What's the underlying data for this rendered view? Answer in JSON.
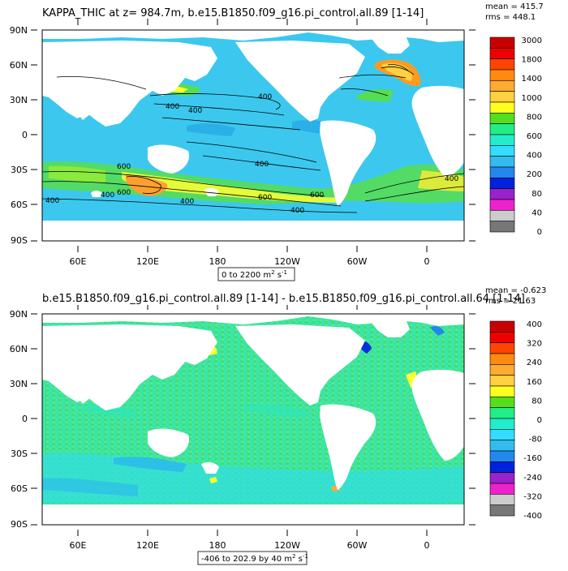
{
  "panels": [
    {
      "title": "KAPPA_THIC at z= 984.7m, b.e15.B1850.f09_g16.pi_control.all.89 [1-14]",
      "stats": [
        "mean = 415.7",
        "rms = 448.1"
      ],
      "range_label": "0 to 2200 m",
      "range_unit_sup": "2",
      "range_unit_tail": " s",
      "range_unit_sup2": "-1",
      "lat_labels": [
        "90N",
        "60N",
        "30N",
        "0",
        "30S",
        "60S",
        "90S"
      ],
      "lon_labels": [
        "60E",
        "120E",
        "180",
        "120W",
        "60W",
        "0"
      ],
      "contour_labels": [
        "400",
        "400",
        "400",
        "600",
        "400",
        "400",
        "600",
        "600",
        "400",
        "400",
        "600",
        "400",
        "400"
      ],
      "colorbar_labels": [
        "3000",
        "1800",
        "1400",
        "1000",
        "800",
        "600",
        "400",
        "200",
        "80",
        "40",
        "0"
      ],
      "colorbar_colors": [
        "#c80000",
        "#ee0000",
        "#ff4400",
        "#ff8a10",
        "#ffaa30",
        "#ffd040",
        "#ffff20",
        "#55dd20",
        "#22ee88",
        "#22eecc",
        "#33ddff",
        "#33bbee",
        "#2288ee",
        "#0022dd",
        "#9922cc",
        "#ee22cc",
        "#cccccc",
        "#777777"
      ]
    },
    {
      "title": "b.e15.B1850.f09_g16.pi_control.all.89 [1-14] - b.e15.B1850.f09_g16.pi_control.all.64 [1-14]",
      "stats": [
        "mean = -0.623",
        "rms = 21.63"
      ],
      "range_label": "-406 to 202.9 by 40 m",
      "range_unit_sup": "2",
      "range_unit_tail": " s",
      "range_unit_sup2": "-1",
      "lat_labels": [
        "90N",
        "60N",
        "30N",
        "0",
        "30S",
        "60S",
        "90S"
      ],
      "lon_labels": [
        "60E",
        "120E",
        "180",
        "120W",
        "60W",
        "0"
      ],
      "colorbar_labels": [
        "400",
        "320",
        "240",
        "160",
        "80",
        "0",
        "-80",
        "-160",
        "-240",
        "-320",
        "-400"
      ],
      "colorbar_colors": [
        "#c80000",
        "#ee0000",
        "#ff4400",
        "#ff8a10",
        "#ffaa30",
        "#ffd040",
        "#ffff20",
        "#55dd20",
        "#22ee88",
        "#22eecc",
        "#33ddff",
        "#33bbee",
        "#2288ee",
        "#0022dd",
        "#9922cc",
        "#ee22cc",
        "#cccccc",
        "#777777"
      ]
    }
  ],
  "colors": {
    "ocean_main": "#3cc8ee",
    "ocean_green": "#3ee68c",
    "land": "#ffffff",
    "contour": "#000000"
  }
}
